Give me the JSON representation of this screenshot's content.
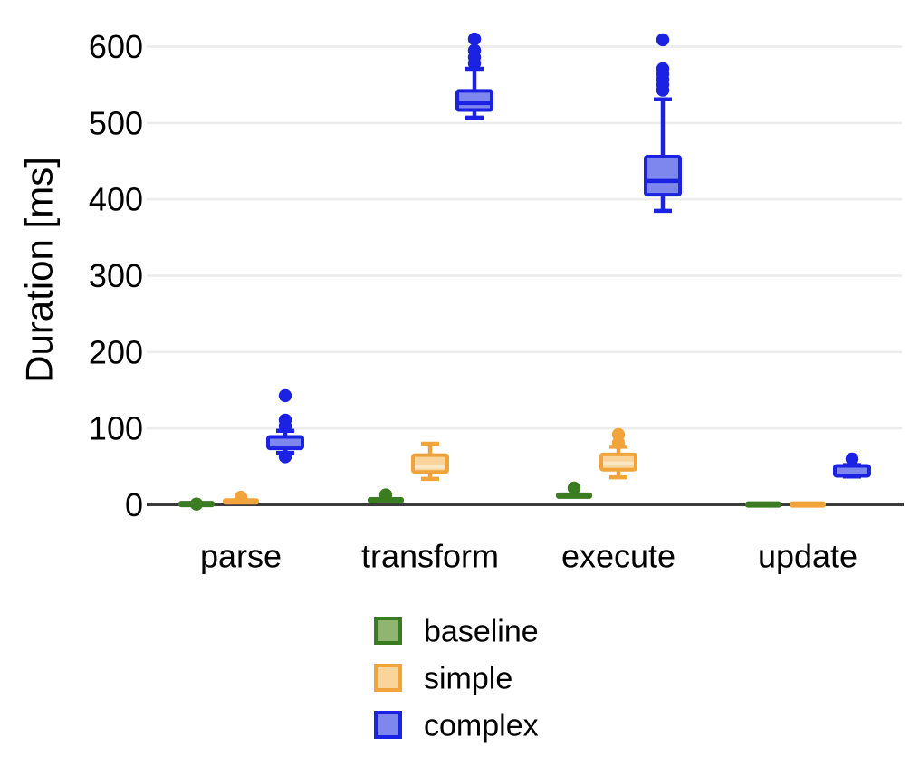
{
  "figure": {
    "background": "#ffffff"
  },
  "chart_data": {
    "type": "boxplot",
    "title": "",
    "xlabel": "",
    "ylabel": "Duration [ms]",
    "categories": [
      "parse",
      "transform",
      "execute",
      "update"
    ],
    "yticks": [
      0,
      100,
      200,
      300,
      400,
      500,
      600
    ],
    "ylim": [
      0,
      640
    ],
    "grid": true,
    "legend_position": "bottom-left",
    "colors": {
      "grid": "#ececec",
      "axis": "#3b3b3b",
      "text": "#000000",
      "background": "#ffffff"
    },
    "series": [
      {
        "name": "baseline",
        "color": "#3a7d20",
        "fill": "#8fb571",
        "boxes": [
          {
            "category": "parse",
            "low": 0,
            "q1": 0,
            "median": 1,
            "q3": 2,
            "high": 3,
            "outliers": [
              1
            ]
          },
          {
            "category": "transform",
            "low": 1,
            "q1": 3,
            "median": 6,
            "q3": 9,
            "high": 11,
            "outliers": [
              13
            ]
          },
          {
            "category": "execute",
            "low": 5,
            "q1": 8,
            "median": 12,
            "q3": 16,
            "high": 18,
            "outliers": [
              22
            ]
          },
          {
            "category": "update",
            "low": 0,
            "q1": 0,
            "median": 0,
            "q3": 1,
            "high": 1,
            "outliers": []
          }
        ]
      },
      {
        "name": "simple",
        "color": "#f2a43c",
        "fill": "#f9d49b",
        "median_color": "#fce7c5",
        "boxes": [
          {
            "category": "parse",
            "low": 0,
            "q1": 1,
            "median": 3,
            "q3": 8,
            "high": 9,
            "outliers": [
              10
            ]
          },
          {
            "category": "transform",
            "low": 34,
            "q1": 43,
            "median": 50,
            "q3": 65,
            "high": 80,
            "outliers": []
          },
          {
            "category": "execute",
            "low": 36,
            "q1": 46,
            "median": 54,
            "q3": 66,
            "high": 76,
            "outliers": [
              81,
              92
            ]
          },
          {
            "category": "update",
            "low": 0,
            "q1": 0,
            "median": 0,
            "q3": 1,
            "high": 1,
            "outliers": []
          }
        ]
      },
      {
        "name": "complex",
        "color": "#1c22e2",
        "fill": "#7d87ed",
        "boxes": [
          {
            "category": "parse",
            "low": 68,
            "q1": 74,
            "median": 82,
            "q3": 89,
            "high": 97,
            "outliers": [
              63,
              103,
              111,
              143
            ]
          },
          {
            "category": "transform",
            "low": 507,
            "q1": 517,
            "median": 526,
            "q3": 542,
            "high": 571,
            "outliers": [
              578,
              586,
              595,
              610
            ]
          },
          {
            "category": "execute",
            "low": 385,
            "q1": 406,
            "median": 424,
            "q3": 456,
            "high": 531,
            "outliers": [
              543,
              550,
              557,
              564,
              571,
              609
            ]
          },
          {
            "category": "update",
            "low": 37,
            "q1": 38,
            "median": 45,
            "q3": 51,
            "high": 52,
            "outliers": [
              60
            ]
          }
        ]
      }
    ]
  }
}
